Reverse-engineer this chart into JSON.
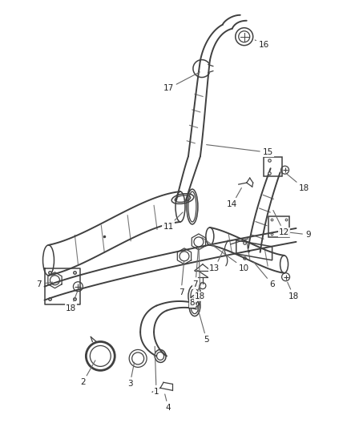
{
  "background_color": "#ffffff",
  "line_color": "#404040",
  "label_color": "#222222",
  "label_fontsize": 7.5,
  "figsize": [
    4.38,
    5.33
  ],
  "dpi": 100
}
